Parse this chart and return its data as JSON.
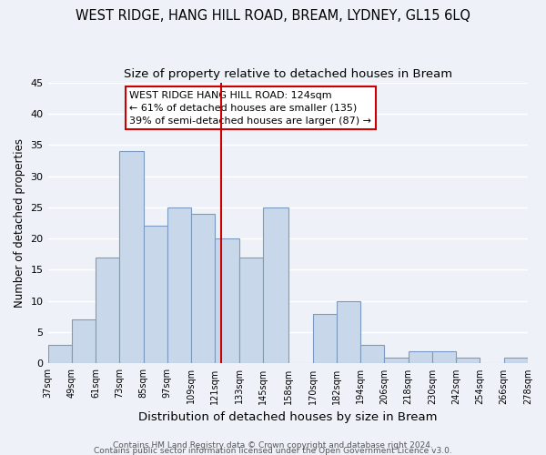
{
  "title": "WEST RIDGE, HANG HILL ROAD, BREAM, LYDNEY, GL15 6LQ",
  "subtitle": "Size of property relative to detached houses in Bream",
  "xlabel": "Distribution of detached houses by size in Bream",
  "ylabel": "Number of detached properties",
  "bins": [
    37,
    49,
    61,
    73,
    85,
    97,
    109,
    121,
    133,
    145,
    158,
    170,
    182,
    194,
    206,
    218,
    230,
    242,
    254,
    266,
    278
  ],
  "bar_heights": [
    3,
    7,
    17,
    34,
    22,
    25,
    24,
    20,
    17,
    25,
    0,
    8,
    10,
    3,
    1,
    2,
    2,
    1,
    0,
    1
  ],
  "bar_color": "#c8d8ea",
  "bar_edge_color": "#7a9bbf",
  "tick_labels": [
    "37sqm",
    "49sqm",
    "61sqm",
    "73sqm",
    "85sqm",
    "97sqm",
    "109sqm",
    "121sqm",
    "133sqm",
    "145sqm",
    "158sqm",
    "170sqm",
    "182sqm",
    "194sqm",
    "206sqm",
    "218sqm",
    "230sqm",
    "242sqm",
    "254sqm",
    "266sqm",
    "278sqm"
  ],
  "vline_x": 124,
  "vline_color": "#cc0000",
  "ylim": [
    0,
    45
  ],
  "yticks": [
    0,
    5,
    10,
    15,
    20,
    25,
    30,
    35,
    40,
    45
  ],
  "annotation_title": "WEST RIDGE HANG HILL ROAD: 124sqm",
  "annotation_line1": "← 61% of detached houses are smaller (135)",
  "annotation_line2": "39% of semi-detached houses are larger (87) →",
  "footer_line1": "Contains HM Land Registry data © Crown copyright and database right 2024.",
  "footer_line2": "Contains public sector information licensed under the Open Government Licence v3.0.",
  "background_color": "#eef2f8",
  "plot_bg_color": "#eef2f8",
  "grid_color": "#ffffff",
  "title_fontsize": 10.5,
  "subtitle_fontsize": 9.5,
  "xlabel_fontsize": 9.5,
  "ylabel_fontsize": 8.5,
  "tick_fontsize": 7,
  "annotation_fontsize": 8,
  "footer_fontsize": 6.5
}
